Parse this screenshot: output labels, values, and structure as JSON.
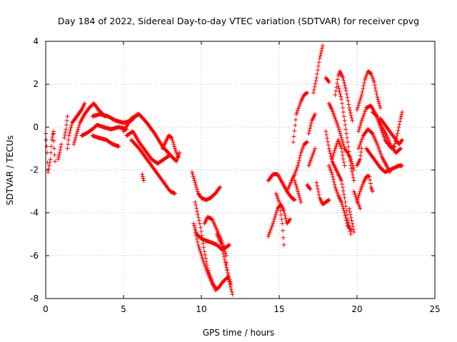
{
  "chart_data": {
    "type": "scatter",
    "title": "Day 184 of 2022, Sidereal Day-to-day VTEC variation (SDTVAR) for receiver cpvg",
    "xlabel": "GPS time / hours",
    "ylabel": "SDTVAR / TECUs",
    "xlim": [
      0,
      25
    ],
    "ylim": [
      -8,
      4
    ],
    "xticks": [
      "0",
      "5",
      "10",
      "15",
      "20",
      "25"
    ],
    "yticks": [
      "-8",
      "-6",
      "-4",
      "-2",
      "0",
      "2",
      "4"
    ],
    "grid": true,
    "marker": "plus",
    "color": "#ff0000",
    "tracks": [
      [
        [
          0.0,
          -0.3
        ],
        [
          0.1,
          -1.2
        ],
        [
          0.15,
          -2.1
        ],
        [
          0.3,
          -1.5
        ],
        [
          0.4,
          -0.6
        ],
        [
          0.5,
          -0.2
        ]
      ],
      [
        [
          0.5,
          -0.3
        ],
        [
          0.55,
          -1.0
        ],
        [
          0.6,
          -1.6
        ]
      ],
      [
        [
          0.8,
          -1.5
        ],
        [
          0.9,
          -1.2
        ],
        [
          1.0,
          -0.8
        ]
      ],
      [
        [
          1.2,
          -0.5
        ],
        [
          1.3,
          -0.1
        ],
        [
          1.4,
          0.5
        ]
      ],
      [
        [
          1.4,
          -1.0
        ],
        [
          1.5,
          -0.4
        ],
        [
          1.7,
          0.2
        ],
        [
          1.9,
          0.4
        ],
        [
          2.1,
          0.6
        ],
        [
          2.3,
          0.8
        ],
        [
          2.5,
          1.1
        ]
      ],
      [
        [
          1.8,
          -0.8
        ],
        [
          2.0,
          -0.3
        ],
        [
          2.2,
          0.2
        ],
        [
          2.5,
          0.6
        ],
        [
          2.8,
          0.9
        ],
        [
          3.1,
          1.1
        ],
        [
          3.4,
          0.8
        ],
        [
          3.8,
          0.5
        ]
      ],
      [
        [
          3.0,
          0.5
        ],
        [
          3.5,
          0.6
        ],
        [
          4.0,
          0.5
        ],
        [
          4.5,
          0.3
        ],
        [
          5.0,
          0.2
        ],
        [
          5.5,
          0.3
        ],
        [
          5.9,
          0.6
        ]
      ],
      [
        [
          2.3,
          -0.4
        ],
        [
          2.6,
          -0.3
        ],
        [
          3.0,
          -0.1
        ],
        [
          3.3,
          0.1
        ],
        [
          3.7,
          0.0
        ],
        [
          4.2,
          -0.1
        ],
        [
          4.7,
          0.0
        ],
        [
          5.2,
          -0.1
        ]
      ],
      [
        [
          3.0,
          -0.4
        ],
        [
          3.4,
          -0.5
        ],
        [
          3.9,
          -0.6
        ],
        [
          4.3,
          -0.8
        ],
        [
          4.7,
          -0.9
        ]
      ],
      [
        [
          5.0,
          -0.2
        ],
        [
          5.5,
          0.4
        ],
        [
          6.0,
          0.6
        ],
        [
          6.5,
          0.2
        ],
        [
          7.0,
          -0.3
        ],
        [
          7.5,
          -0.9
        ],
        [
          8.0,
          -1.3
        ],
        [
          8.4,
          -1.6
        ],
        [
          8.6,
          -1.2
        ]
      ],
      [
        [
          5.2,
          -0.4
        ],
        [
          5.6,
          -0.2
        ],
        [
          6.0,
          -0.7
        ],
        [
          6.4,
          -1.1
        ],
        [
          6.8,
          -1.5
        ],
        [
          7.2,
          -1.7
        ],
        [
          7.6,
          -1.5
        ],
        [
          8.0,
          -1.3
        ]
      ],
      [
        [
          5.5,
          -0.6
        ],
        [
          6.0,
          -1.0
        ],
        [
          6.4,
          -1.4
        ],
        [
          6.8,
          -1.8
        ],
        [
          7.2,
          -2.2
        ],
        [
          7.6,
          -2.6
        ],
        [
          8.0,
          -3.0
        ],
        [
          8.3,
          -3.1
        ]
      ],
      [
        [
          6.2,
          -2.2
        ],
        [
          6.3,
          -2.5
        ]
      ],
      [
        [
          7.5,
          -1.0
        ],
        [
          7.7,
          -0.7
        ],
        [
          7.9,
          -0.4
        ],
        [
          8.1,
          -0.5
        ],
        [
          8.3,
          -1.0
        ],
        [
          8.5,
          -1.4
        ]
      ],
      [
        [
          9.4,
          -2.1
        ],
        [
          9.6,
          -2.6
        ],
        [
          9.8,
          -3.1
        ],
        [
          10.0,
          -3.3
        ],
        [
          10.3,
          -3.4
        ],
        [
          10.6,
          -3.3
        ],
        [
          10.9,
          -3.1
        ],
        [
          11.2,
          -2.8
        ]
      ],
      [
        [
          9.5,
          -4.5
        ],
        [
          9.7,
          -5.0
        ],
        [
          10.0,
          -5.2
        ],
        [
          10.3,
          -5.3
        ],
        [
          10.7,
          -5.4
        ],
        [
          11.0,
          -5.5
        ],
        [
          11.3,
          -5.7
        ],
        [
          11.6,
          -5.6
        ],
        [
          11.8,
          -5.5
        ]
      ],
      [
        [
          9.6,
          -3.5
        ],
        [
          9.9,
          -4.5
        ],
        [
          10.2,
          -5.8
        ],
        [
          10.4,
          -6.6
        ],
        [
          10.7,
          -7.2
        ],
        [
          10.9,
          -7.6
        ],
        [
          11.1,
          -7.5
        ],
        [
          11.4,
          -7.2
        ],
        [
          11.7,
          -7.0
        ],
        [
          12.0,
          -7.8
        ]
      ],
      [
        [
          10.2,
          -4.5
        ],
        [
          10.4,
          -4.2
        ],
        [
          10.7,
          -4.3
        ],
        [
          11.0,
          -4.8
        ],
        [
          11.3,
          -5.3
        ],
        [
          11.6,
          -6.0
        ],
        [
          11.7,
          -7.0
        ]
      ],
      [
        [
          9.6,
          -4.8
        ],
        [
          9.8,
          -5.5
        ],
        [
          10.1,
          -6.2
        ],
        [
          10.4,
          -6.8
        ],
        [
          10.7,
          -7.3
        ],
        [
          10.9,
          -7.5
        ]
      ],
      [
        [
          11.0,
          -5.0
        ],
        [
          11.3,
          -5.5
        ],
        [
          11.5,
          -6.2
        ],
        [
          11.7,
          -6.8
        ],
        [
          11.9,
          -7.3
        ]
      ],
      [
        [
          14.3,
          -2.5
        ],
        [
          14.6,
          -2.2
        ],
        [
          14.9,
          -2.2
        ],
        [
          15.2,
          -2.6
        ],
        [
          15.5,
          -3.0
        ],
        [
          15.8,
          -3.3
        ],
        [
          16.0,
          -3.4
        ]
      ],
      [
        [
          14.3,
          -5.1
        ],
        [
          14.6,
          -4.5
        ],
        [
          14.9,
          -3.8
        ],
        [
          15.1,
          -3.6
        ],
        [
          15.3,
          -3.9
        ],
        [
          15.5,
          -4.5
        ],
        [
          15.7,
          -4.3
        ]
      ],
      [
        [
          14.8,
          -3.1
        ],
        [
          15.0,
          -3.5
        ],
        [
          15.2,
          -4.5
        ],
        [
          15.3,
          -5.5
        ]
      ],
      [
        [
          15.5,
          -3.0
        ],
        [
          15.8,
          -2.5
        ],
        [
          16.0,
          -2.2
        ],
        [
          16.2,
          -1.8
        ],
        [
          16.4,
          -1.2
        ],
        [
          16.6,
          -0.8
        ],
        [
          16.8,
          -0.7
        ]
      ],
      [
        [
          16.0,
          -2.5
        ],
        [
          16.2,
          -3.0
        ],
        [
          16.4,
          -3.5
        ]
      ],
      [
        [
          15.9,
          -0.7
        ],
        [
          16.1,
          0.6
        ],
        [
          16.4,
          1.2
        ],
        [
          16.6,
          1.5
        ],
        [
          16.8,
          1.6
        ]
      ],
      [
        [
          16.8,
          -2.7
        ],
        [
          17.0,
          -2.9
        ]
      ],
      [
        [
          17.2,
          1.6
        ],
        [
          17.4,
          2.3
        ],
        [
          17.6,
          3.2
        ],
        [
          17.8,
          3.8
        ]
      ],
      [
        [
          16.9,
          -0.3
        ],
        [
          17.1,
          0.3
        ],
        [
          17.3,
          0.6
        ]
      ],
      [
        [
          16.9,
          -1.8
        ],
        [
          17.1,
          -1.4
        ],
        [
          17.3,
          -1.0
        ]
      ],
      [
        [
          17.4,
          -2.6
        ],
        [
          17.6,
          -3.3
        ],
        [
          17.8,
          -3.6
        ],
        [
          18.0,
          -3.5
        ],
        [
          18.2,
          -3.4
        ]
      ],
      [
        [
          18.0,
          2.3
        ],
        [
          18.2,
          2.1
        ]
      ],
      [
        [
          18.0,
          -0.2
        ],
        [
          18.2,
          -1.0
        ],
        [
          18.4,
          -1.6
        ],
        [
          18.6,
          -1.9
        ],
        [
          18.8,
          -2.2
        ],
        [
          19.0,
          -2.5
        ],
        [
          19.2,
          -3.3
        ],
        [
          19.4,
          -4.3
        ],
        [
          19.6,
          -5.0
        ]
      ],
      [
        [
          18.2,
          -1.8
        ],
        [
          18.4,
          -2.2
        ],
        [
          18.6,
          -2.8
        ],
        [
          18.8,
          -3.2
        ],
        [
          19.0,
          -3.5
        ],
        [
          19.2,
          -4.0
        ],
        [
          19.4,
          -4.6
        ],
        [
          19.6,
          -4.8
        ]
      ],
      [
        [
          18.2,
          1.1
        ],
        [
          18.4,
          0.8
        ],
        [
          18.6,
          0.4
        ],
        [
          18.8,
          0.0
        ],
        [
          19.0,
          -0.5
        ],
        [
          19.2,
          -1.0
        ],
        [
          19.4,
          -1.2
        ],
        [
          19.6,
          -1.5
        ],
        [
          19.8,
          -2.0
        ]
      ],
      [
        [
          18.6,
          1.5
        ],
        [
          18.8,
          2.4
        ],
        [
          18.9,
          2.6
        ],
        [
          19.1,
          2.3
        ],
        [
          19.3,
          1.7
        ],
        [
          19.5,
          0.9
        ],
        [
          19.7,
          0.3
        ]
      ],
      [
        [
          18.8,
          1.9
        ],
        [
          19.0,
          1.3
        ],
        [
          19.2,
          0.3
        ],
        [
          19.4,
          -0.7
        ],
        [
          19.6,
          -1.8
        ],
        [
          19.8,
          -2.5
        ]
      ],
      [
        [
          18.4,
          -1.5
        ],
        [
          18.6,
          -1.0
        ],
        [
          18.8,
          -0.6
        ],
        [
          19.0,
          -1.0
        ],
        [
          19.2,
          -1.8
        ]
      ],
      [
        [
          19.5,
          -3.8
        ],
        [
          19.7,
          -4.5
        ],
        [
          19.8,
          -4.9
        ]
      ],
      [
        [
          19.8,
          -3.0
        ],
        [
          20.0,
          -3.4
        ],
        [
          20.2,
          -3.8
        ]
      ],
      [
        [
          20.0,
          -3.5
        ],
        [
          20.2,
          -3.0
        ],
        [
          20.4,
          -2.6
        ],
        [
          20.6,
          -2.3
        ],
        [
          20.8,
          -2.3
        ],
        [
          20.9,
          -2.8
        ],
        [
          21.0,
          -3.0
        ]
      ],
      [
        [
          20.0,
          -1.8
        ],
        [
          20.2,
          -1.5
        ],
        [
          20.3,
          -1.0
        ]
      ],
      [
        [
          20.0,
          0.8
        ],
        [
          20.3,
          1.5
        ],
        [
          20.5,
          2.2
        ],
        [
          20.7,
          2.6
        ],
        [
          20.9,
          2.5
        ],
        [
          21.1,
          2.1
        ],
        [
          21.3,
          1.4
        ],
        [
          21.5,
          0.9
        ]
      ],
      [
        [
          20.1,
          -0.2
        ],
        [
          20.3,
          0.3
        ],
        [
          20.6,
          0.9
        ],
        [
          20.9,
          1.0
        ],
        [
          21.2,
          0.6
        ],
        [
          21.5,
          0.0
        ],
        [
          21.8,
          -0.6
        ],
        [
          22.1,
          -0.9
        ]
      ],
      [
        [
          20.1,
          -1.0
        ],
        [
          20.4,
          -0.4
        ],
        [
          20.7,
          -0.1
        ],
        [
          21.0,
          -0.3
        ],
        [
          21.3,
          -0.8
        ],
        [
          21.6,
          -1.4
        ],
        [
          21.9,
          -1.8
        ],
        [
          22.1,
          -2.1
        ]
      ],
      [
        [
          20.6,
          -1.0
        ],
        [
          20.9,
          -1.3
        ],
        [
          21.2,
          -1.6
        ],
        [
          21.5,
          -1.9
        ],
        [
          21.8,
          -2.1
        ],
        [
          22.1,
          -2.0
        ],
        [
          22.4,
          -1.9
        ],
        [
          22.7,
          -1.8
        ],
        [
          22.9,
          -1.8
        ]
      ],
      [
        [
          21.0,
          0.7
        ],
        [
          21.3,
          0.5
        ],
        [
          21.6,
          0.0
        ],
        [
          21.9,
          -0.4
        ],
        [
          22.2,
          -0.9
        ],
        [
          22.5,
          -1.2
        ],
        [
          22.8,
          -1.0
        ]
      ],
      [
        [
          21.5,
          0.4
        ],
        [
          21.8,
          0.1
        ],
        [
          22.1,
          -0.2
        ],
        [
          22.4,
          -0.5
        ],
        [
          22.7,
          -0.8
        ],
        [
          22.9,
          -0.6
        ]
      ],
      [
        [
          22.2,
          -1.0
        ],
        [
          22.4,
          -0.9
        ],
        [
          22.6,
          -0.3
        ],
        [
          22.8,
          0.4
        ],
        [
          22.9,
          0.7
        ]
      ]
    ]
  }
}
